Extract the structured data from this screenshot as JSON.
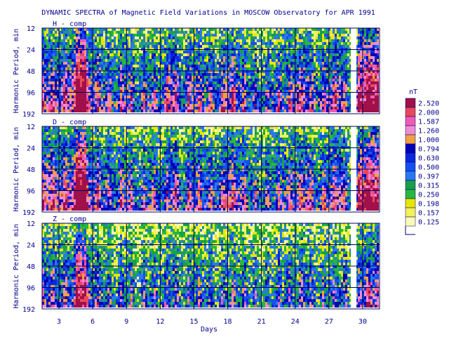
{
  "chart_data": {
    "type": "heatmap",
    "title": "DYNAMIC SPECTRA of Magnetic Field Variations in MOSCOW Observatory for APR 1991",
    "xlabel": "Days",
    "ylabel": "Harmonic Period, min",
    "x_ticks": [
      "3",
      "6",
      "9",
      "12",
      "15",
      "18",
      "21",
      "24",
      "27",
      "30"
    ],
    "xlim": [
      1.5,
      31.5
    ],
    "y_ticks": [
      "12",
      "24",
      "48",
      "96",
      "192"
    ],
    "y_scale": "log2",
    "ylim": [
      12,
      192
    ],
    "data_gaps_days": [
      29.2
    ],
    "panels": [
      {
        "label": "H - comp",
        "activity": [
          0.5,
          0.45,
          0.55,
          0.95,
          0.5,
          0.4,
          0.35,
          0.45,
          0.3,
          0.4,
          0.35,
          0.55,
          0.35,
          0.45,
          0.4,
          0.35,
          0.5,
          0.45,
          0.35,
          0.3,
          0.35,
          0.4,
          0.45,
          0.5,
          0.35,
          0.45,
          0.5,
          0.3,
          0.75,
          0.8
        ]
      },
      {
        "label": "D - comp",
        "activity": [
          0.55,
          0.5,
          0.55,
          0.95,
          0.5,
          0.4,
          0.35,
          0.45,
          0.3,
          0.4,
          0.35,
          0.5,
          0.35,
          0.45,
          0.4,
          0.35,
          0.5,
          0.45,
          0.35,
          0.3,
          0.35,
          0.4,
          0.45,
          0.5,
          0.35,
          0.45,
          0.5,
          0.3,
          0.7,
          0.75
        ]
      },
      {
        "label": "Z - comp",
        "activity": [
          0.4,
          0.35,
          0.4,
          0.75,
          0.35,
          0.3,
          0.25,
          0.3,
          0.2,
          0.3,
          0.25,
          0.35,
          0.25,
          0.3,
          0.3,
          0.25,
          0.3,
          0.3,
          0.25,
          0.2,
          0.25,
          0.3,
          0.3,
          0.35,
          0.25,
          0.3,
          0.3,
          0.2,
          0.45,
          0.5
        ]
      }
    ],
    "colorbar": {
      "unit": "nT",
      "levels": [
        "2.520",
        "2.000",
        "1.587",
        "1.260",
        "1.000",
        "0.794",
        "0.630",
        "0.500",
        "0.397",
        "0.315",
        "0.250",
        "0.198",
        "0.157",
        "0.125"
      ],
      "colors": [
        "#a0104a",
        "#e8485c",
        "#f05ab4",
        "#ee8cd2",
        "#f0a040",
        "#0000b4",
        "#0a28dc",
        "#1450f0",
        "#2878f0",
        "#18a048",
        "#28b840",
        "#e6e600",
        "#f2f25a",
        "#fafab4"
      ]
    }
  }
}
